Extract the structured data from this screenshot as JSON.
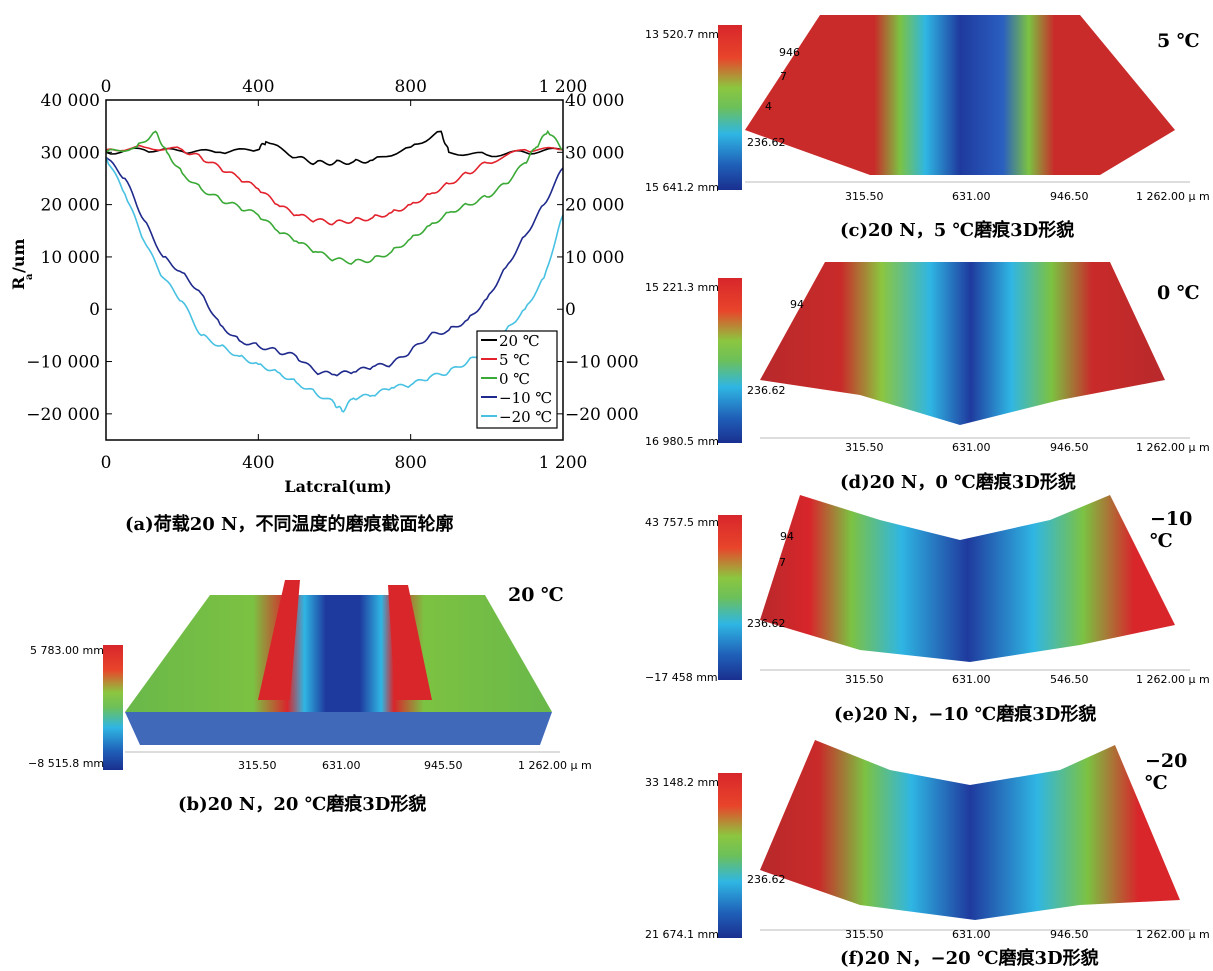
{
  "chart_data": [
    {
      "type": "line",
      "title": "",
      "xlabel": "Latcral(um)",
      "ylabel": "R_a/um",
      "xlim": [
        0,
        1200
      ],
      "ylim": [
        -25000,
        40000
      ],
      "x_ticks": [
        "0",
        "400",
        "800",
        "1 200"
      ],
      "y_ticks": [
        "40 000",
        "30 000",
        "20 000",
        "10 000",
        "0",
        "−10 000",
        "−20 000"
      ],
      "right_ticks": [
        "40 000",
        "30 000",
        "20 000",
        "10 000",
        "0",
        "−10 000",
        "−20 000"
      ],
      "legend_position": "lower-right",
      "series": [
        {
          "name": "20 ℃",
          "color": "#000000",
          "x": [
            0,
            100,
            200,
            300,
            400,
            420,
            500,
            550,
            600,
            650,
            700,
            800,
            880,
            900,
            1000,
            1100,
            1200
          ],
          "y": [
            30000,
            30500,
            30200,
            30000,
            30500,
            32000,
            29000,
            28000,
            28000,
            28200,
            28500,
            31000,
            34000,
            30000,
            29500,
            30000,
            30500
          ]
        },
        {
          "name": "5 ℃",
          "color": "#e2232d",
          "x": [
            0,
            100,
            200,
            250,
            300,
            350,
            400,
            450,
            500,
            550,
            600,
            650,
            700,
            750,
            800,
            850,
            900,
            950,
            1000,
            1100,
            1200
          ],
          "y": [
            30500,
            31000,
            30500,
            29000,
            27000,
            25000,
            23000,
            20000,
            18000,
            17000,
            16500,
            17000,
            17500,
            18500,
            20000,
            22000,
            24000,
            26000,
            28000,
            30500,
            30500
          ]
        },
        {
          "name": "0 ℃",
          "color": "#3aa935",
          "x": [
            0,
            80,
            130,
            160,
            200,
            250,
            300,
            350,
            400,
            450,
            500,
            550,
            600,
            650,
            700,
            750,
            800,
            850,
            900,
            950,
            1000,
            1050,
            1100,
            1130,
            1160,
            1200
          ],
          "y": [
            30000,
            31000,
            34000,
            30000,
            26000,
            23000,
            21000,
            19500,
            18000,
            15000,
            13000,
            11000,
            9500,
            9000,
            9500,
            11000,
            13500,
            16000,
            18500,
            20000,
            21500,
            24000,
            28000,
            31000,
            34000,
            30500
          ]
        },
        {
          "name": "−10 ℃",
          "color": "#1f2a8c",
          "x": [
            0,
            50,
            100,
            150,
            200,
            250,
            300,
            350,
            400,
            450,
            500,
            550,
            600,
            650,
            700,
            750,
            800,
            850,
            900,
            950,
            1000,
            1050,
            1100,
            1150,
            1200
          ],
          "y": [
            29000,
            25000,
            17000,
            10000,
            7000,
            3000,
            -3000,
            -6000,
            -7000,
            -8000,
            -9000,
            -12000,
            -12500,
            -12000,
            -11000,
            -10500,
            -8000,
            -5000,
            -4000,
            -2000,
            2000,
            8000,
            14000,
            20000,
            27000
          ]
        },
        {
          "name": "−20 ℃",
          "color": "#48c1e2",
          "x": [
            0,
            50,
            100,
            150,
            200,
            250,
            300,
            350,
            400,
            450,
            500,
            550,
            600,
            620,
            650,
            700,
            750,
            800,
            850,
            900,
            950,
            1000,
            1050,
            1100,
            1150,
            1200
          ],
          "y": [
            29000,
            22000,
            13000,
            6000,
            1500,
            -5000,
            -7000,
            -9000,
            -10500,
            -12000,
            -14000,
            -16000,
            -18000,
            -19500,
            -17000,
            -16500,
            -15000,
            -14500,
            -13000,
            -12000,
            -10000,
            -8000,
            -4000,
            0,
            6000,
            18000
          ]
        }
      ]
    }
  ],
  "captions": {
    "a": "(a)荷载20 N，不同温度的磨痕截面轮廓",
    "b": "(b)20 N，20 ℃磨痕3D形貌",
    "c": "(c)20 N，5 ℃磨痕3D形貌",
    "d": "(d)20 N，0 ℃磨痕3D形貌",
    "e": "(e)20 N，−10 ℃磨痕3D形貌",
    "f": "(f)20 N，−20 ℃磨痕3D形貌"
  },
  "panels": {
    "b": {
      "temp": "20 ℃",
      "max": "5 783.00 mm",
      "min": "−8 515.8 mm",
      "axis": [
        "315.50",
        "631.00",
        "945.50",
        "1 262.00 μ m"
      ],
      "mid": ""
    },
    "c": {
      "temp": "5 ℃",
      "max": "13 520.7 mm",
      "min": "15 641.2 mm",
      "axis": [
        "315.50",
        "631.00",
        "946.50",
        "1 262.00 μ m"
      ],
      "mid": "236.62",
      "side": [
        "946",
        "7",
        "4"
      ]
    },
    "d": {
      "temp": "0 ℃",
      "max": "15 221.3 mm",
      "min": "16 980.5 mm",
      "axis": [
        "315.50",
        "631.00",
        "946.50",
        "1 262.00 μ m"
      ],
      "mid": "236.62",
      "side": [
        "94"
      ]
    },
    "e": {
      "temp": "−10 ℃",
      "max": "43 757.5 mm",
      "min": "−17 458 mm",
      "axis": [
        "315.50",
        "631.00",
        "546.50",
        "1 262.00 μ m"
      ],
      "mid": "236.62",
      "side": [
        "94",
        "7"
      ]
    },
    "f": {
      "temp": "−20 ℃",
      "max": "33 148.2 mm",
      "min": "21 674.1 mm",
      "axis": [
        "315.50",
        "631.00",
        "946.50",
        "1 262.00 μ m"
      ],
      "mid": "236.62",
      "side": []
    }
  },
  "colors": {
    "high": "#d8262b",
    "mid_green": "#7cc242",
    "mid_cyan": "#2fb6e3",
    "low": "#1f3a9e"
  }
}
